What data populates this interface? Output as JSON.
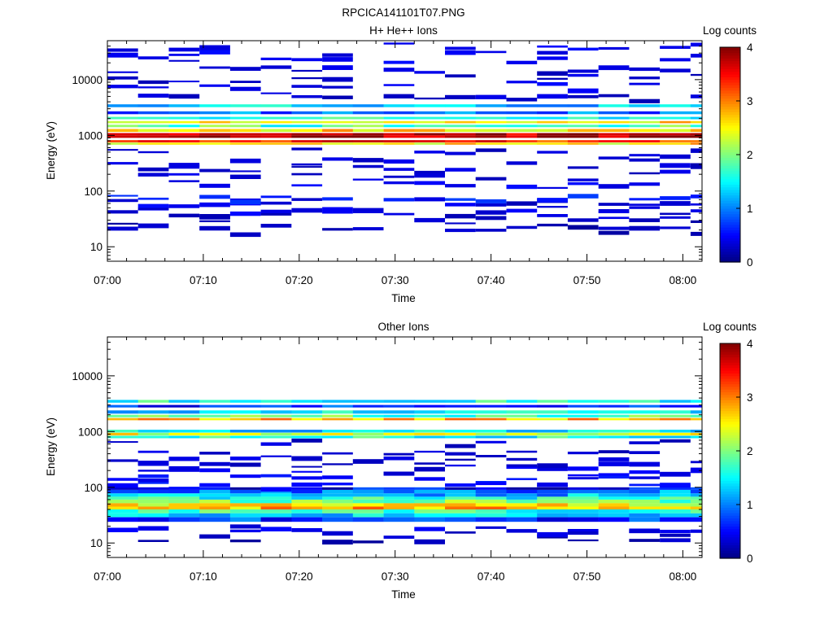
{
  "figure": {
    "title": "RPCICA141101T07.PNG"
  },
  "chart_data": [
    {
      "type": "heatmap",
      "title": "H+ He++ Ions",
      "xlabel": "Time",
      "ylabel": "Energy (eV)",
      "y_scale": "log",
      "ylim": [
        5.5,
        50000
      ],
      "y_ticks": [
        10,
        100,
        1000,
        10000
      ],
      "y_tick_labels": [
        "10",
        "100",
        "1000",
        "10000"
      ],
      "x_ticks": [
        "07:00",
        "07:10",
        "07:20",
        "07:30",
        "07:40",
        "07:50",
        "08:00"
      ],
      "xlim_minutes": [
        0,
        62
      ],
      "colorbar": {
        "label": "Log counts",
        "range": [
          0,
          4
        ],
        "ticks": [
          "0",
          "1",
          "2",
          "3",
          "4"
        ]
      },
      "time_bins_min": [
        0,
        3.2,
        6.4,
        9.6,
        12.8,
        16,
        19.2,
        22.4,
        25.6,
        28.8,
        32,
        35.2,
        38.4,
        41.6,
        44.8,
        48,
        51.2,
        54.4,
        57.6,
        60.8
      ],
      "bands": [
        {
          "e": [
            900,
            1000,
            1100
          ],
          "v": [
            3.9,
            3.8
          ]
        },
        {
          "e": [
            750,
            820
          ],
          "v": [
            3.4,
            3.1
          ]
        },
        {
          "e": [
            680,
            740
          ],
          "v": [
            2.6,
            2.1
          ]
        },
        {
          "e": [
            1150,
            1300
          ],
          "v": [
            2.6,
            2.0
          ]
        },
        {
          "e": [
            1400,
            1550
          ],
          "v": [
            1.8,
            1.4
          ]
        },
        {
          "e": [
            1650,
            1800
          ],
          "v": [
            2.6,
            2.1
          ]
        },
        {
          "e": [
            1950,
            2150
          ],
          "v": [
            1.6,
            1.0
          ]
        },
        {
          "e": [
            2400,
            2700
          ],
          "v": [
            0.9,
            0.4
          ]
        },
        {
          "e": [
            3200,
            3600
          ],
          "v": [
            1.3,
            0.8
          ]
        }
      ],
      "specks": [
        {
          "e": 40,
          "v": 0.3
        },
        {
          "e": 45,
          "v": 0.2
        },
        {
          "e": 55,
          "v": 0.3
        },
        {
          "e": 65,
          "v": 0.2
        },
        {
          "e": 75,
          "v": 0.5
        },
        {
          "e": 25,
          "v": 0.1
        },
        {
          "e": 20,
          "v": 0.1
        },
        {
          "e": 35,
          "v": 0.2
        },
        {
          "e": 500,
          "v": 0.2
        },
        {
          "e": 350,
          "v": 0.2
        },
        {
          "e": 250,
          "v": 0.2
        },
        {
          "e": 180,
          "v": 0.2
        },
        {
          "e": 130,
          "v": 0.3
        },
        {
          "e": 5000,
          "v": 0.2
        },
        {
          "e": 7500,
          "v": 0.3
        },
        {
          "e": 10500,
          "v": 0.2
        },
        {
          "e": 15000,
          "v": 0.2
        },
        {
          "e": 22000,
          "v": 0.3
        },
        {
          "e": 31000,
          "v": 0.3
        },
        {
          "e": 40000,
          "v": 0.3
        }
      ]
    },
    {
      "type": "heatmap",
      "title": "Other Ions",
      "xlabel": "Time",
      "ylabel": "Energy (eV)",
      "y_scale": "log",
      "ylim": [
        5.5,
        50000
      ],
      "y_ticks": [
        10,
        100,
        1000,
        10000
      ],
      "y_tick_labels": [
        "10",
        "100",
        "1000",
        "10000"
      ],
      "x_ticks": [
        "07:00",
        "07:10",
        "07:20",
        "07:30",
        "07:40",
        "07:50",
        "08:00"
      ],
      "xlim_minutes": [
        0,
        62
      ],
      "colorbar": {
        "label": "Log counts",
        "range": [
          0,
          4
        ],
        "ticks": [
          "0",
          "1",
          "2",
          "3",
          "4"
        ]
      },
      "time_bins_min": [
        0,
        3.2,
        6.4,
        9.6,
        12.8,
        16,
        19.2,
        22.4,
        25.6,
        28.8,
        32,
        35.2,
        38.4,
        41.6,
        44.8,
        48,
        51.2,
        54.4,
        57.6,
        60.8
      ],
      "bands": [
        {
          "e": [
            40,
            45,
            52,
            60,
            68,
            78
          ],
          "v": [
            2.8,
            2.5,
            2.0,
            1.6,
            1.2
          ]
        },
        {
          "e": [
            34,
            40
          ],
          "v": [
            1.7,
            1.2
          ]
        },
        {
          "e": [
            29,
            34
          ],
          "v": [
            1.3,
            0.9
          ]
        },
        {
          "e": [
            78,
            90,
            100
          ],
          "v": [
            1.0,
            0.5
          ]
        },
        {
          "e": [
            24,
            29
          ],
          "v": [
            0.7,
            0.3
          ]
        },
        {
          "e": [
            850,
            950
          ],
          "v": [
            2.4,
            1.8
          ]
        },
        {
          "e": [
            760,
            840
          ],
          "v": [
            1.6,
            1.1
          ]
        },
        {
          "e": [
            960,
            1080
          ],
          "v": [
            1.4,
            0.8
          ]
        },
        {
          "e": [
            1600,
            1750
          ],
          "v": [
            2.8,
            2.2
          ]
        },
        {
          "e": [
            1800,
            2000
          ],
          "v": [
            1.8,
            1.2
          ]
        },
        {
          "e": [
            2100,
            2400
          ],
          "v": [
            1.4,
            0.8
          ]
        },
        {
          "e": [
            3300,
            3700
          ],
          "v": [
            1.6,
            1.0
          ]
        },
        {
          "e": [
            2700,
            3000
          ],
          "v": [
            0.7,
            0.3
          ]
        }
      ],
      "specks": [
        {
          "e": 110,
          "v": 0.4
        },
        {
          "e": 130,
          "v": 0.3
        },
        {
          "e": 160,
          "v": 0.4
        },
        {
          "e": 200,
          "v": 0.3
        },
        {
          "e": 240,
          "v": 0.2
        },
        {
          "e": 300,
          "v": 0.2
        },
        {
          "e": 400,
          "v": 0.2
        },
        {
          "e": 650,
          "v": 0.2
        },
        {
          "e": 18,
          "v": 0.3
        },
        {
          "e": 12,
          "v": 0.1
        },
        {
          "e": 15,
          "v": 0.2
        }
      ]
    }
  ]
}
